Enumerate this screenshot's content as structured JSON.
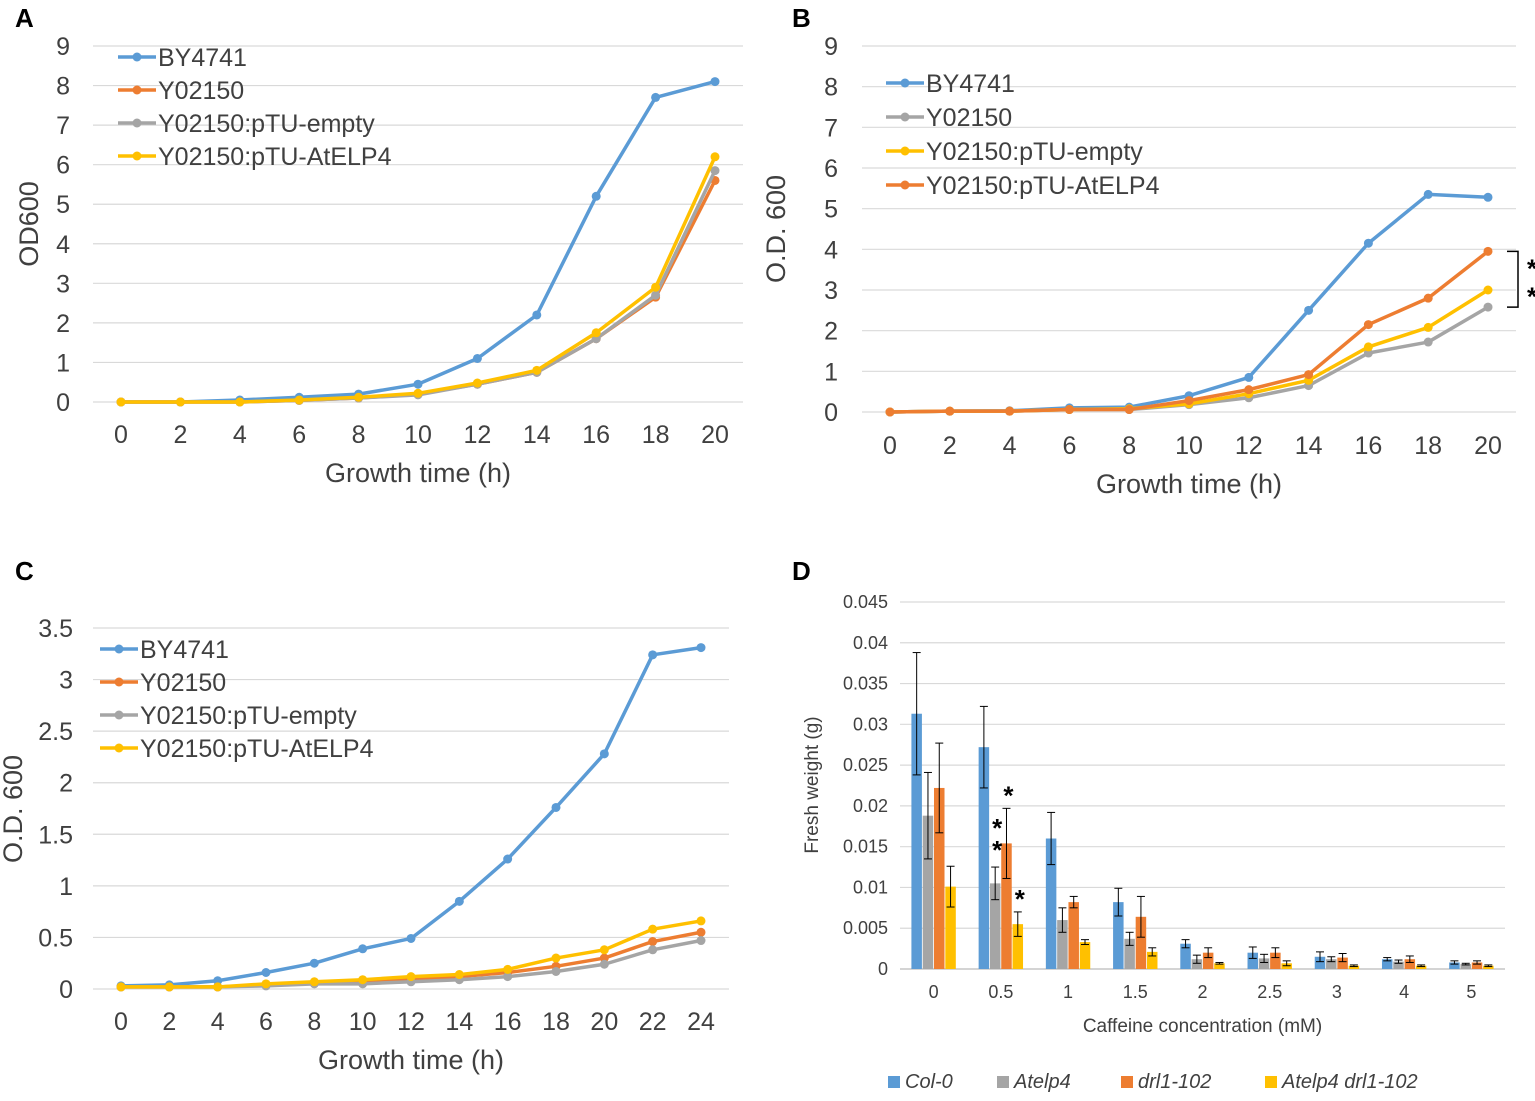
{
  "colors": {
    "blue": "#5b9bd5",
    "orange": "#ed7d31",
    "gray": "#a5a5a5",
    "yellow": "#ffc000"
  },
  "chart_data": [
    {
      "panel": "A",
      "type": "line",
      "xlabel": "Growth time (h)",
      "ylabel": "OD600",
      "x": [
        0,
        2,
        4,
        6,
        8,
        10,
        12,
        14,
        16,
        18,
        20
      ],
      "xticks": [
        "0",
        "2",
        "4",
        "6",
        "8",
        "10",
        "12",
        "14",
        "16",
        "18",
        "20"
      ],
      "ylim": [
        0,
        9
      ],
      "yticks": [
        "0",
        "1",
        "2",
        "3",
        "4",
        "5",
        "6",
        "7",
        "8",
        "9"
      ],
      "grid": true,
      "legend_position": "top-left",
      "series": [
        {
          "name": "BY4741",
          "color": "blue",
          "values": [
            0,
            0,
            0.05,
            0.12,
            0.2,
            0.45,
            1.1,
            2.2,
            5.2,
            7.7,
            8.1
          ]
        },
        {
          "name": "Y02150",
          "color": "orange",
          "values": [
            0,
            0,
            0,
            0.04,
            0.1,
            0.2,
            0.45,
            0.75,
            1.6,
            2.65,
            5.6
          ]
        },
        {
          "name": "Y02150:pTU-empty",
          "color": "gray",
          "values": [
            0,
            0,
            0,
            0.04,
            0.1,
            0.18,
            0.45,
            0.75,
            1.6,
            2.7,
            5.85
          ]
        },
        {
          "name": "Y02150:pTU-AtELP4",
          "color": "yellow",
          "values": [
            0,
            0,
            0,
            0.05,
            0.12,
            0.22,
            0.48,
            0.8,
            1.75,
            2.9,
            6.2
          ]
        }
      ],
      "annotations": []
    },
    {
      "panel": "B",
      "type": "line",
      "xlabel": "Growth time (h)",
      "ylabel": "O.D. 600",
      "x": [
        0,
        2,
        4,
        6,
        8,
        10,
        12,
        14,
        16,
        18,
        20
      ],
      "xticks": [
        "0",
        "2",
        "4",
        "6",
        "8",
        "10",
        "12",
        "14",
        "16",
        "18",
        "20"
      ],
      "ylim": [
        0,
        9
      ],
      "yticks": [
        "0",
        "1",
        "2",
        "3",
        "4",
        "5",
        "6",
        "7",
        "8",
        "9"
      ],
      "grid": true,
      "legend_position": "top-left",
      "series": [
        {
          "name": "BY4741",
          "color": "blue",
          "values": [
            0,
            0.02,
            0.03,
            0.1,
            0.12,
            0.4,
            0.85,
            2.5,
            4.15,
            5.35,
            5.28
          ]
        },
        {
          "name": "Y02150",
          "color": "gray",
          "values": [
            0,
            0.02,
            0.02,
            0.06,
            0.06,
            0.18,
            0.35,
            0.65,
            1.45,
            1.72,
            2.58
          ]
        },
        {
          "name": "Y02150:pTU-empty",
          "color": "yellow",
          "values": [
            0,
            0.02,
            0.02,
            0.06,
            0.08,
            0.2,
            0.45,
            0.78,
            1.6,
            2.08,
            3.0
          ]
        },
        {
          "name": "Y02150:pTU-AtELP4",
          "color": "orange",
          "values": [
            0,
            0.02,
            0.02,
            0.06,
            0.06,
            0.28,
            0.55,
            0.92,
            2.15,
            2.8,
            3.95
          ]
        }
      ],
      "annotations": [
        "*",
        "*"
      ]
    },
    {
      "panel": "C",
      "type": "line",
      "xlabel": "Growth time (h)",
      "ylabel": "O.D. 600",
      "x": [
        0,
        2,
        4,
        6,
        8,
        10,
        12,
        14,
        16,
        18,
        20,
        22,
        24
      ],
      "xticks": [
        "0",
        "2",
        "4",
        "6",
        "8",
        "10",
        "12",
        "14",
        "16",
        "18",
        "20",
        "22",
        "24"
      ],
      "ylim": [
        0,
        3.5
      ],
      "yticks": [
        "0",
        "0.5",
        "1",
        "1.5",
        "2",
        "2.5",
        "3",
        "3.5"
      ],
      "grid": true,
      "legend_position": "top-left",
      "series": [
        {
          "name": "BY4741",
          "color": "blue",
          "values": [
            0.03,
            0.04,
            0.08,
            0.16,
            0.25,
            0.39,
            0.49,
            0.85,
            1.26,
            1.76,
            2.28,
            3.24,
            3.31
          ]
        },
        {
          "name": "Y02150",
          "color": "orange",
          "values": [
            0.02,
            0.02,
            0.02,
            0.04,
            0.06,
            0.07,
            0.09,
            0.12,
            0.16,
            0.22,
            0.3,
            0.46,
            0.55
          ]
        },
        {
          "name": "Y02150:pTU-empty",
          "color": "gray",
          "values": [
            0.02,
            0.02,
            0.02,
            0.03,
            0.05,
            0.05,
            0.07,
            0.09,
            0.12,
            0.17,
            0.24,
            0.38,
            0.47
          ]
        },
        {
          "name": "Y02150:pTU-AtELP4",
          "color": "yellow",
          "values": [
            0.02,
            0.02,
            0.02,
            0.05,
            0.07,
            0.09,
            0.12,
            0.14,
            0.19,
            0.3,
            0.38,
            0.58,
            0.66
          ]
        }
      ],
      "annotations": []
    },
    {
      "panel": "D",
      "type": "bar",
      "xlabel": "Caffeine concentration (mM)",
      "ylabel": "Fresh weight (g)",
      "categories": [
        "0",
        "0.5",
        "1",
        "1.5",
        "2",
        "2.5",
        "3",
        "4",
        "5"
      ],
      "ylim": [
        0,
        0.045
      ],
      "yticks": [
        "0",
        "0.005",
        "0.01",
        "0.015",
        "0.02",
        "0.025",
        "0.03",
        "0.035",
        "0.04",
        "0.045"
      ],
      "grid": true,
      "legend_position": "bottom",
      "series": [
        {
          "name": "Col-0",
          "color": "blue",
          "values": [
            0.0313,
            0.0272,
            0.016,
            0.0082,
            0.0031,
            0.002,
            0.0015,
            0.0012,
            0.0008
          ],
          "errors": [
            0.0075,
            0.005,
            0.0032,
            0.0017,
            0.0005,
            0.0007,
            0.0006,
            0.0002,
            0.0002
          ]
        },
        {
          "name": "Atelp4",
          "color": "gray",
          "values": [
            0.0188,
            0.0105,
            0.006,
            0.0037,
            0.0012,
            0.0013,
            0.0012,
            0.0009,
            0.0006
          ],
          "errors": [
            0.0053,
            0.002,
            0.0015,
            0.0008,
            0.0005,
            0.0005,
            0.0003,
            0.0002,
            0.0001
          ]
        },
        {
          "name": "drl1-102",
          "color": "orange",
          "values": [
            0.0222,
            0.0154,
            0.0082,
            0.0064,
            0.002,
            0.002,
            0.0014,
            0.0012,
            0.0008
          ],
          "errors": [
            0.0055,
            0.0043,
            0.0007,
            0.0025,
            0.0006,
            0.0006,
            0.0005,
            0.0004,
            0.0002
          ]
        },
        {
          "name": "Atelp4 drl1-102",
          "color": "yellow",
          "values": [
            0.0101,
            0.0055,
            0.0033,
            0.0021,
            0.0007,
            0.0007,
            0.0004,
            0.0004,
            0.0004
          ],
          "errors": [
            0.0025,
            0.0015,
            0.0003,
            0.0005,
            0.0001,
            0.0003,
            0.0001,
            0.0001,
            0.0001
          ]
        }
      ],
      "annotations": [
        {
          "category": "0.5",
          "series": "Atelp4",
          "label": "**"
        },
        {
          "category": "0.5",
          "series": "drl1-102",
          "label": "*"
        },
        {
          "category": "0.5",
          "series": "Atelp4 drl1-102",
          "label": "*"
        }
      ]
    }
  ]
}
